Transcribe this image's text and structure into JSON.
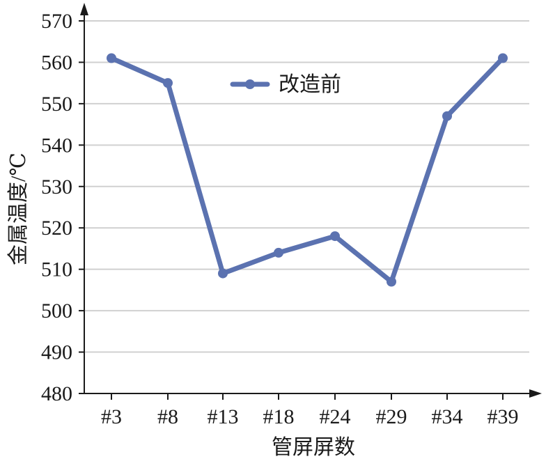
{
  "chart_data": {
    "type": "line",
    "title": "",
    "xlabel": "管屏屏数",
    "ylabel": "金属温度/℃",
    "categories": [
      "#3",
      "#8",
      "#13",
      "#18",
      "#24",
      "#29",
      "#34",
      "#39"
    ],
    "series": [
      {
        "name": "改造前",
        "values": [
          561,
          555,
          509,
          514,
          518,
          507,
          547,
          561
        ]
      }
    ],
    "ylim": [
      480,
      570
    ],
    "yticks": [
      480,
      490,
      500,
      510,
      520,
      530,
      540,
      550,
      560,
      570
    ],
    "grid": "horizontal",
    "legend_position": "top-center",
    "colors": {
      "series": "#5b72b0",
      "grid": "#d0d0d0",
      "axis": "#1a1a1a"
    }
  }
}
